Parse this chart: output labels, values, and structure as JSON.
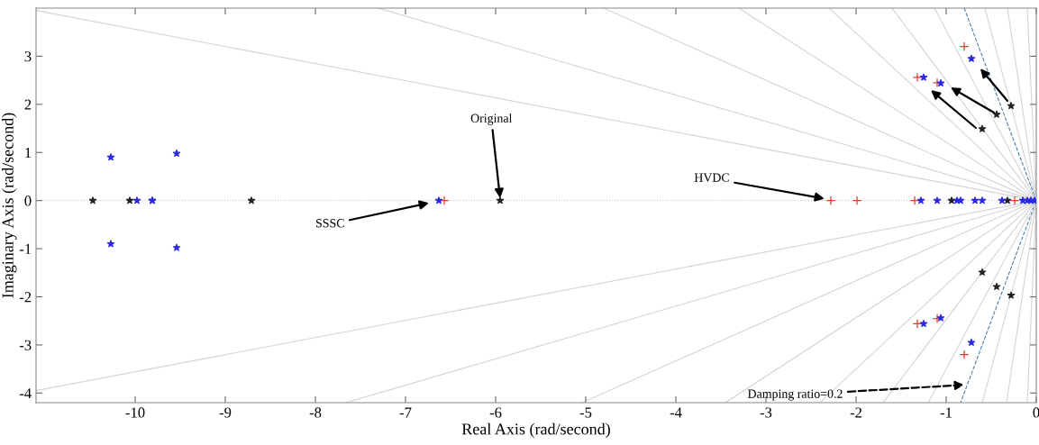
{
  "chart_data": {
    "type": "scatter",
    "xlabel": "Real Axis (rad/second)",
    "ylabel": "Imaginary Axis (rad/second)",
    "xlim": [
      -11.1,
      0
    ],
    "ylim": [
      -4.2,
      4.0
    ],
    "xticks": [
      -10,
      -9,
      -8,
      -7,
      -6,
      -5,
      -4,
      -3,
      -2,
      -1,
      0
    ],
    "yticks": [
      -4,
      -3,
      -2,
      -1,
      0,
      1,
      2,
      3
    ],
    "series": [
      {
        "type": "line",
        "color": "#cccccc",
        "line_style": "dotted",
        "marker": "none",
        "x": [
          -11.1,
          0
        ],
        "values": [
          0,
          0
        ]
      },
      {
        "type": "line",
        "color": "#d4d4d4",
        "line_style": "solid",
        "marker": "none",
        "x": [
          -11.1,
          0,
          -11.1
        ],
        "values": [
          3.95,
          0,
          -3.95
        ]
      },
      {
        "type": "line",
        "color": "#d4d4d4",
        "line_style": "solid",
        "marker": "none",
        "x": [
          -7.3,
          0,
          -7.66
        ],
        "values": [
          4.0,
          0,
          -4.2
        ]
      },
      {
        "type": "line",
        "color": "#d4d4d4",
        "line_style": "solid",
        "marker": "none",
        "x": [
          -4.8,
          0,
          -5.04
        ],
        "values": [
          4.0,
          0,
          -4.2
        ]
      },
      {
        "type": "line",
        "color": "#d4d4d4",
        "line_style": "solid",
        "marker": "none",
        "x": [
          -3.3,
          0,
          -3.45
        ],
        "values": [
          4.0,
          0,
          -4.2
        ]
      },
      {
        "type": "line",
        "color": "#d4d4d4",
        "line_style": "solid",
        "marker": "none",
        "x": [
          -2.3,
          0,
          -2.4
        ],
        "values": [
          4.0,
          0,
          -4.2
        ]
      },
      {
        "type": "line",
        "color": "#d4d4d4",
        "line_style": "solid",
        "marker": "none",
        "x": [
          -1.6,
          0,
          -1.7
        ],
        "values": [
          4.0,
          0,
          -4.2
        ]
      },
      {
        "type": "line",
        "color": "#d4d4d4",
        "line_style": "solid",
        "marker": "none",
        "x": [
          -1.13,
          0,
          -1.2
        ],
        "values": [
          4.0,
          0,
          -4.2
        ]
      },
      {
        "type": "line",
        "color": "#4a7fb0",
        "line_style": "dashed",
        "marker": "none",
        "x": [
          -0.8,
          0,
          -0.84
        ],
        "values": [
          4.0,
          0,
          -4.2
        ]
      },
      {
        "type": "line",
        "color": "#d4d4d4",
        "line_style": "solid",
        "marker": "none",
        "x": [
          -0.57,
          0,
          -0.6
        ],
        "values": [
          4.0,
          0,
          -4.2
        ]
      },
      {
        "type": "line",
        "color": "#d4d4d4",
        "line_style": "solid",
        "marker": "none",
        "x": [
          -0.32,
          0,
          -0.33
        ],
        "values": [
          4.0,
          0,
          -4.2
        ]
      },
      {
        "type": "line",
        "color": "#d4d4d4",
        "line_style": "solid",
        "marker": "none",
        "x": [
          -0.1,
          0,
          -0.1
        ],
        "values": [
          4.0,
          0,
          -4.2
        ]
      },
      {
        "color": "#222222",
        "marker": "star",
        "x": [
          -10.47,
          -10.06,
          -9.81,
          -8.71,
          -5.95,
          -0.94,
          -0.32,
          -0.28,
          -0.28,
          -0.44,
          -0.44,
          -0.6,
          -0.6
        ],
        "values": [
          0,
          0,
          0,
          0,
          0,
          0,
          0,
          1.97,
          -1.97,
          1.79,
          -1.79,
          1.49,
          -1.49
        ]
      },
      {
        "color": "#e8382f",
        "marker": "cross",
        "x": [
          -6.57,
          -2.28,
          -1.99,
          -1.35,
          -0.24,
          -1.32,
          -1.32,
          -1.1,
          -1.1,
          -0.8,
          -0.8
        ],
        "values": [
          0,
          0,
          0,
          0,
          0,
          2.56,
          -2.56,
          2.45,
          -2.45,
          3.2,
          -3.2
        ]
      },
      {
        "color": "#2a2ae0",
        "marker": "star",
        "x": [
          -10.27,
          -10.27,
          -9.54,
          -9.54,
          -9.98,
          -9.81,
          -6.63,
          -1.28,
          -1.1,
          -0.88,
          -0.84,
          -0.68,
          -0.6,
          -0.38,
          -0.15,
          -0.1,
          -0.06,
          -0.02,
          -1.25,
          -1.25,
          -1.06,
          -1.06,
          -0.72,
          -0.72
        ],
        "values": [
          0.9,
          -0.9,
          0.98,
          -0.98,
          0,
          0,
          0,
          0,
          0,
          0,
          0,
          0,
          0,
          0,
          0,
          0,
          0,
          0,
          2.56,
          -2.56,
          2.44,
          -2.44,
          2.95,
          -2.95
        ]
      }
    ],
    "annotations": [
      {
        "text": "Original",
        "x": -5.95,
        "y": 0.05
      },
      {
        "text": "SSSC",
        "x": -6.74,
        "y": -0.05
      },
      {
        "text": "HVDC",
        "x": -2.35,
        "y": 0.04
      },
      {
        "text": "Damping ratio=0.2",
        "x": -0.8,
        "y": -3.83
      }
    ],
    "grid": false,
    "legend": false
  }
}
